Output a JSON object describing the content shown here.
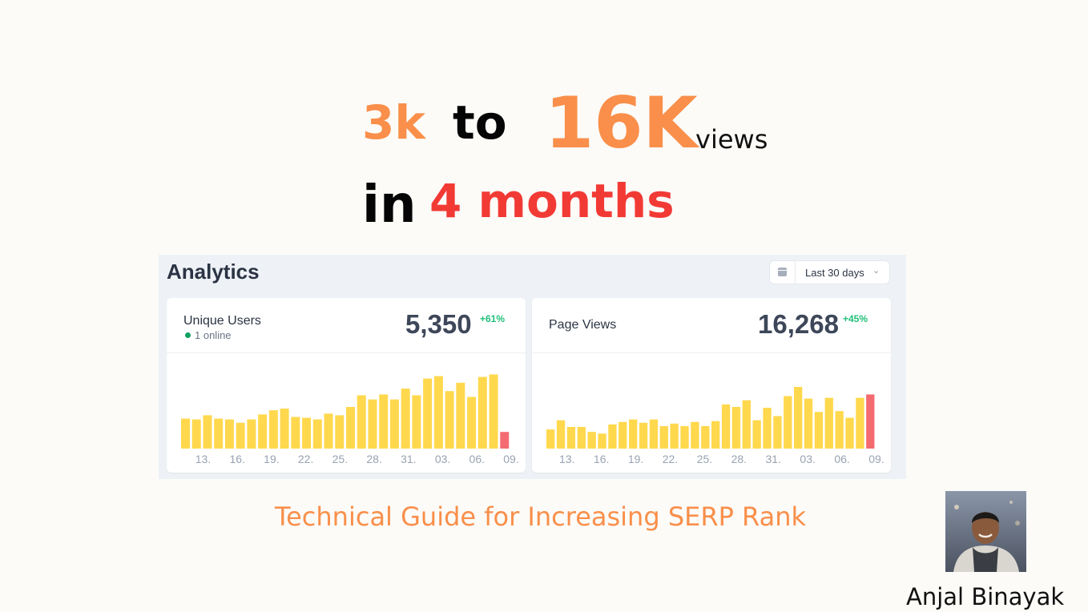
{
  "headline": {
    "from": "3k",
    "to_word": "to",
    "target": "16K",
    "unit": "views",
    "in_word": "in",
    "duration": "4 months"
  },
  "analytics": {
    "title": "Analytics",
    "date_range": "Last 30 days",
    "date_icon": "calendar-icon",
    "chevron_icon": "chevron-down-icon"
  },
  "cards": {
    "users": {
      "label": "Unique Users",
      "online": "1 online",
      "value": "5,350",
      "delta": "+61%"
    },
    "views": {
      "label": "Page Views",
      "value": "16,268",
      "delta": "+45%"
    }
  },
  "chart_data": [
    {
      "type": "bar",
      "title": "",
      "tick_labels": [
        "13.",
        "16.",
        "19.",
        "22.",
        "25.",
        "28.",
        "31.",
        "03.",
        "06.",
        "09."
      ],
      "values": [
        36,
        35,
        40,
        36,
        35,
        31,
        35,
        41,
        46,
        48,
        38,
        37,
        35,
        42,
        40,
        50,
        64,
        59,
        65,
        59,
        72,
        64,
        84,
        87,
        69,
        79,
        62,
        86,
        89,
        20
      ],
      "highlight_last": true,
      "colors": {
        "bar": "#ffd84d",
        "last_bar": "#f36b70"
      },
      "ylim": [
        0,
        100
      ],
      "grid": false
    },
    {
      "type": "bar",
      "title": "",
      "tick_labels": [
        "13.",
        "16.",
        "19.",
        "22.",
        "25.",
        "28.",
        "31.",
        "03.",
        "06.",
        "09."
      ],
      "values": [
        23,
        34,
        26,
        26,
        20,
        18,
        29,
        32,
        35,
        31,
        35,
        27,
        30,
        27,
        32,
        27,
        33,
        53,
        50,
        58,
        34,
        49,
        39,
        63,
        74,
        60,
        44,
        61,
        45,
        37,
        61,
        65
      ],
      "tick_labels_note": "",
      "highlight_last": true,
      "colors": {
        "bar": "#ffd84d",
        "last_bar": "#f36b70"
      },
      "ylim": [
        0,
        100
      ],
      "grid": false
    }
  ],
  "footer": {
    "subtitle": "Technical Guide for Increasing SERP Rank",
    "author": "Anjal Binayak"
  }
}
